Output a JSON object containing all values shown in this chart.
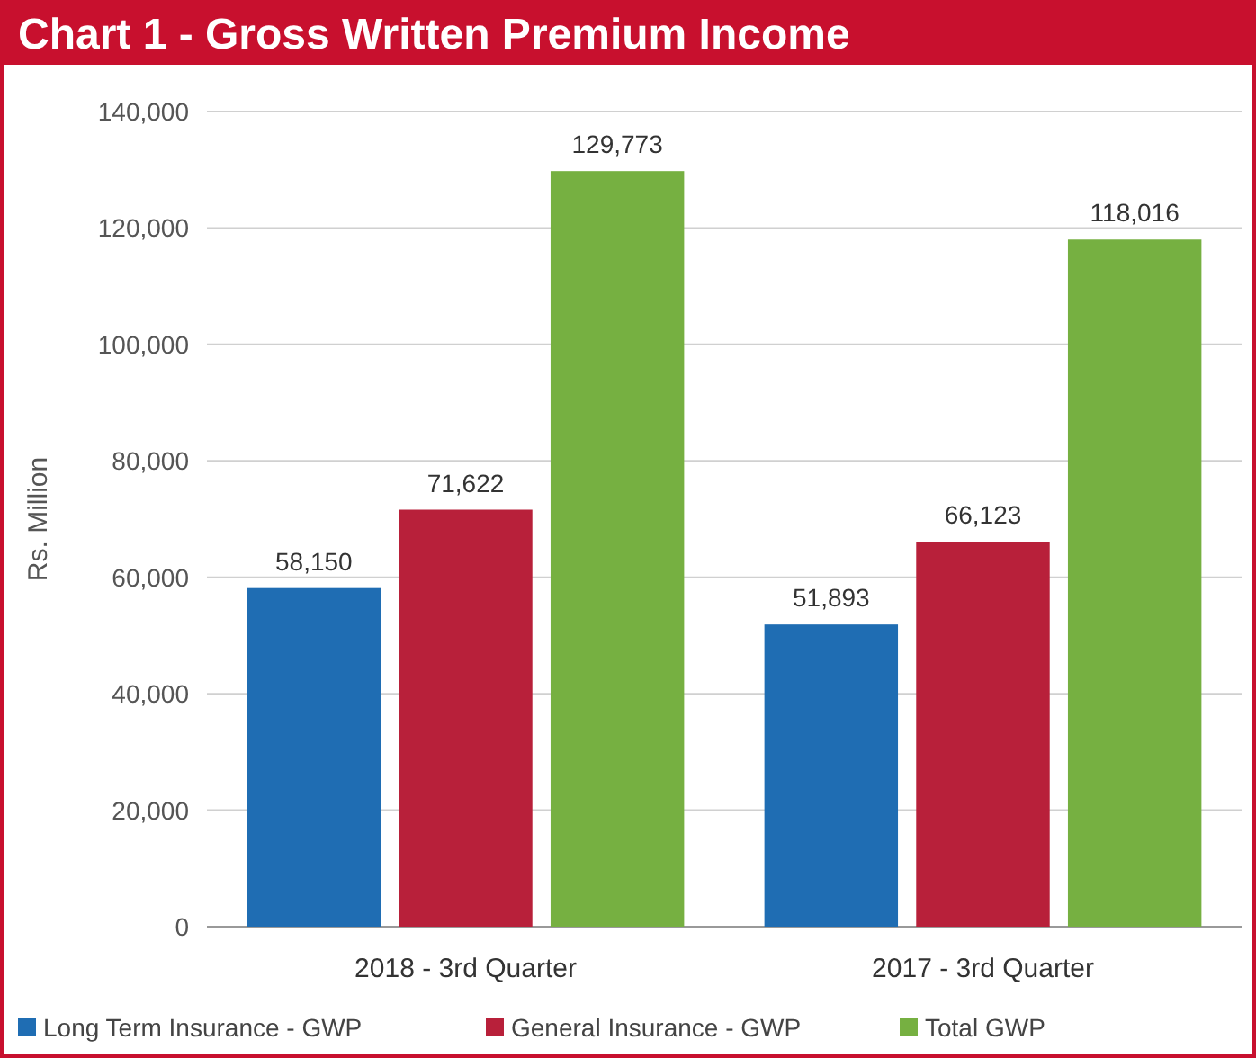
{
  "chart_data": {
    "type": "bar",
    "title": "Chart 1 - Gross Written Premium Income",
    "ylabel": "Rs. Million",
    "categories": [
      "2018 - 3rd Quarter",
      "2017 - 3rd Quarter"
    ],
    "series": [
      {
        "name": "Long Term Insurance - GWP",
        "color": "#1f6db3",
        "values": [
          58150,
          51893
        ]
      },
      {
        "name": "General Insurance - GWP",
        "color": "#b8203a",
        "values": [
          71622,
          66123
        ]
      },
      {
        "name": "Total GWP",
        "color": "#76b041",
        "values": [
          129773,
          118016
        ]
      }
    ],
    "ylim": [
      0,
      140000
    ],
    "yticks": [
      {
        "value": 0,
        "label": "0"
      },
      {
        "value": 20000,
        "label": "20,000"
      },
      {
        "value": 40000,
        "label": "40,000"
      },
      {
        "value": 60000,
        "label": "60,000"
      },
      {
        "value": 80000,
        "label": "80,000"
      },
      {
        "value": 100000,
        "label": "100,000"
      },
      {
        "value": 120000,
        "label": "120,000"
      },
      {
        "value": 140000,
        "label": "140,000"
      }
    ],
    "value_labels": [
      [
        "58,150",
        "51,893"
      ],
      [
        "71,622",
        "66,123"
      ],
      [
        "129,773",
        "118,016"
      ]
    ],
    "grid": "y",
    "legend": "bottom"
  }
}
